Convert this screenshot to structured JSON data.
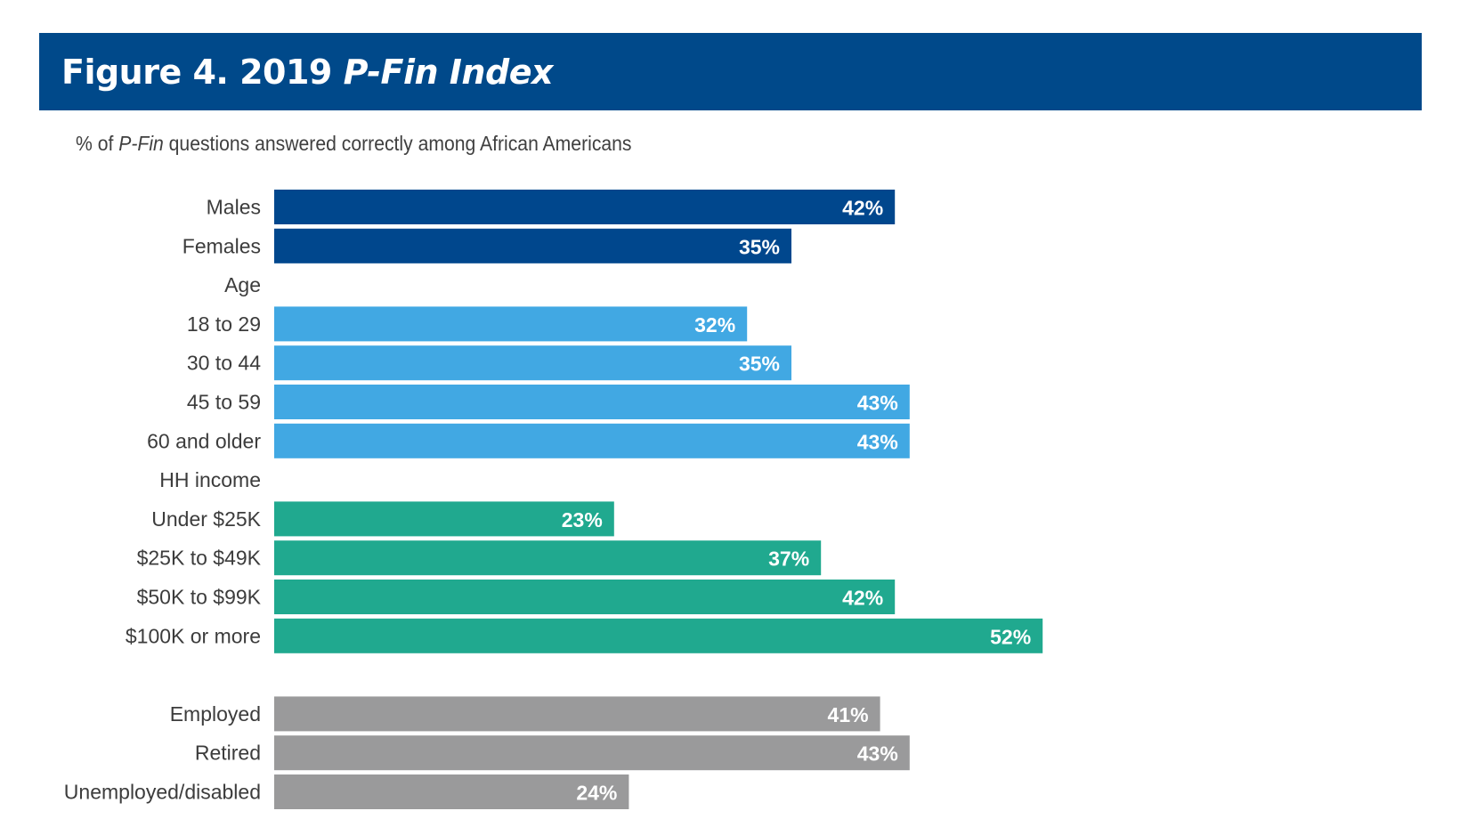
{
  "chart_data": {
    "type": "bar",
    "orientation": "horizontal",
    "title_prefix": "Figure 4. 2019 ",
    "title_em": "P-Fin Index",
    "subtitle_prefix": "% of ",
    "subtitle_em": "P-Fin",
    "subtitle_suffix": " questions answered correctly among African Americans",
    "xlim": [
      0,
      100
    ],
    "grid": false,
    "legend": "none",
    "rows": [
      {
        "label": "Males",
        "value": 42,
        "display": "42%",
        "group": "gender",
        "color": "#00478d"
      },
      {
        "label": "Females",
        "value": 35,
        "display": "35%",
        "group": "gender",
        "color": "#00478d"
      },
      {
        "label": "Age",
        "value": null,
        "header": true
      },
      {
        "label": "18 to 29",
        "value": 32,
        "display": "32%",
        "group": "age",
        "color": "#41a8e3"
      },
      {
        "label": "30 to 44",
        "value": 35,
        "display": "35%",
        "group": "age",
        "color": "#41a8e3"
      },
      {
        "label": "45 to 59",
        "value": 43,
        "display": "43%",
        "group": "age",
        "color": "#41a8e3"
      },
      {
        "label": "60 and older",
        "value": 43,
        "display": "43%",
        "group": "age",
        "color": "#41a8e3"
      },
      {
        "label": "HH income",
        "value": null,
        "header": true
      },
      {
        "label": "Under $25K",
        "value": 23,
        "display": "23%",
        "group": "income",
        "color": "#20a98f"
      },
      {
        "label": "$25K to $49K",
        "value": 37,
        "display": "37%",
        "group": "income",
        "color": "#20a98f"
      },
      {
        "label": "$50K to $99K",
        "value": 42,
        "display": "42%",
        "group": "income",
        "color": "#20a98f"
      },
      {
        "label": "$100K or more",
        "value": 52,
        "display": "52%",
        "group": "income",
        "color": "#20a98f"
      },
      {
        "label": "",
        "value": null,
        "spacer": true
      },
      {
        "label": "Employed",
        "value": 41,
        "display": "41%",
        "group": "employment",
        "color": "#9a9a9b"
      },
      {
        "label": "Retired",
        "value": 43,
        "display": "43%",
        "group": "employment",
        "color": "#9a9a9b"
      },
      {
        "label": "Unemployed/disabled",
        "value": 24,
        "display": "24%",
        "group": "employment",
        "color": "#9a9a9b"
      }
    ]
  },
  "colors": {
    "title_bg": "#00498a",
    "gender": "#00478d",
    "age": "#41a8e3",
    "income": "#20a98f",
    "employment": "#9a9a9b"
  }
}
